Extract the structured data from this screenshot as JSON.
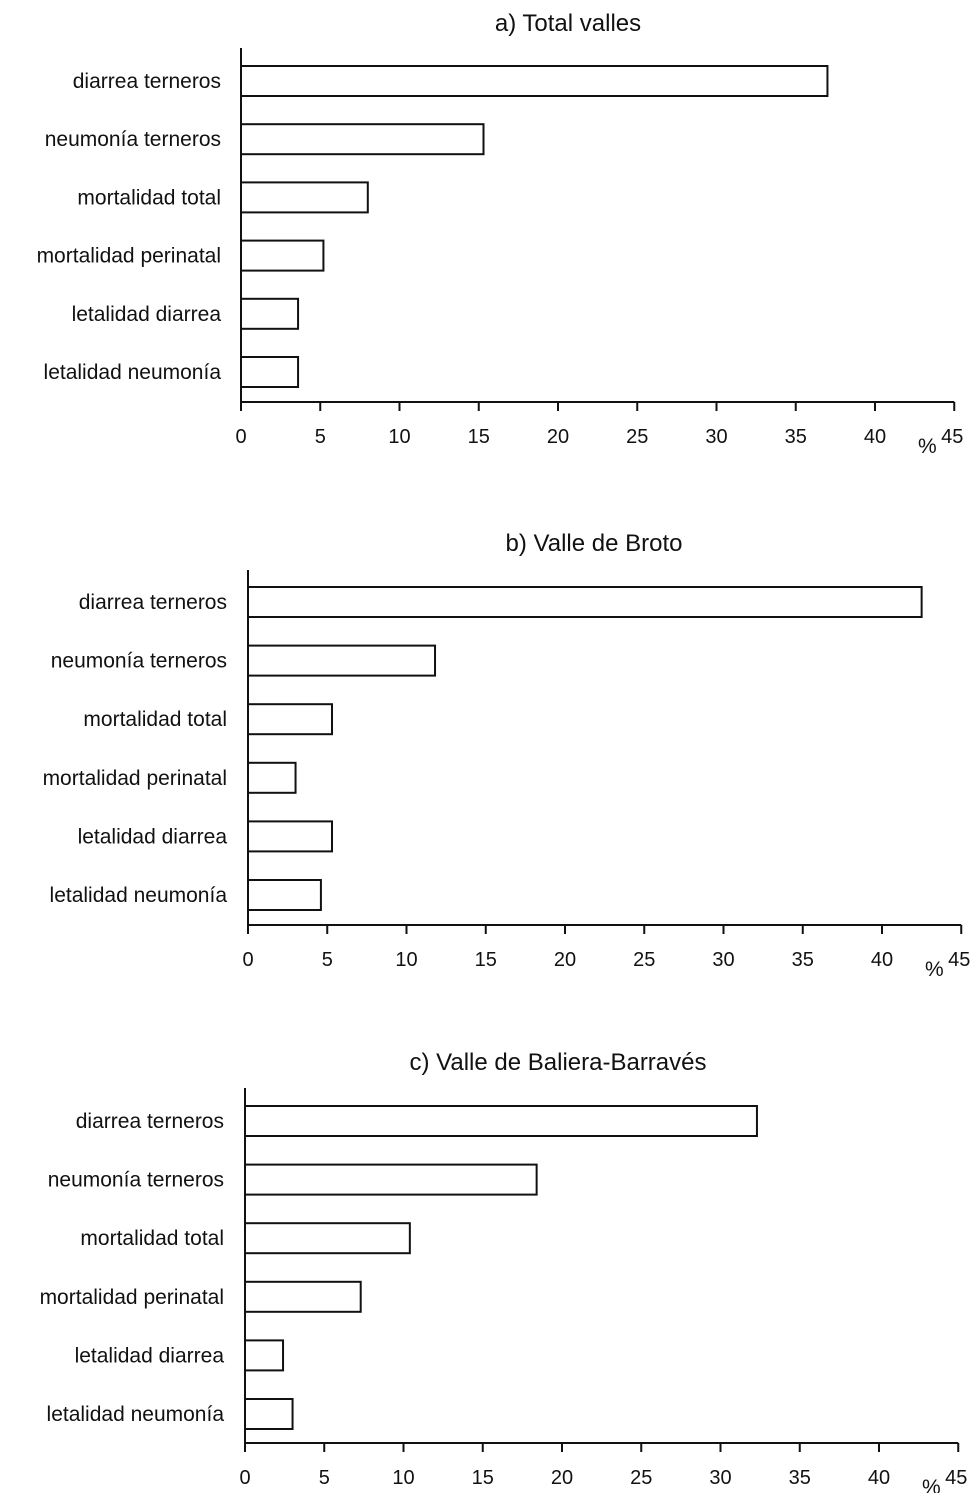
{
  "chart_data": [
    {
      "type": "bar",
      "orientation": "horizontal",
      "title": "a) Total valles",
      "categories": [
        "diarrea terneros",
        "neumonía terneros",
        "mortalidad total",
        "mortalidad perinatal",
        "letalidad diarrea",
        "letalidad neumonía"
      ],
      "values": [
        37.0,
        15.3,
        8.0,
        5.2,
        3.6,
        3.6
      ],
      "xlim": [
        0,
        45
      ],
      "xticks": [
        "0",
        "5",
        "10",
        "15",
        "20",
        "25",
        "30",
        "35",
        "40",
        "45"
      ],
      "xlabel": "%",
      "grid": false
    },
    {
      "type": "bar",
      "orientation": "horizontal",
      "title": "b) Valle de Broto",
      "categories": [
        "diarrea terneros",
        "neumonía terneros",
        "mortalidad total",
        "mortalidad perinatal",
        "letalidad diarrea",
        "letalidad neumonía"
      ],
      "values": [
        42.5,
        11.8,
        5.3,
        3.0,
        5.3,
        4.6
      ],
      "xlim": [
        0,
        45
      ],
      "xticks": [
        "0",
        "5",
        "10",
        "15",
        "20",
        "25",
        "30",
        "35",
        "40",
        "45"
      ],
      "xlabel": "%",
      "grid": false
    },
    {
      "type": "bar",
      "orientation": "horizontal",
      "title": "c) Valle de Baliera-Barravés",
      "categories": [
        "diarrea terneros",
        "neumonía terneros",
        "mortalidad total",
        "mortalidad perinatal",
        "letalidad diarrea",
        "letalidad neumonía"
      ],
      "values": [
        32.3,
        18.4,
        10.4,
        7.3,
        2.4,
        3.0
      ],
      "xlim": [
        0,
        45
      ],
      "xticks": [
        "0",
        "5",
        "10",
        "15",
        "20",
        "25",
        "30",
        "35",
        "40",
        "45"
      ],
      "xlabel": "%",
      "grid": false
    }
  ]
}
